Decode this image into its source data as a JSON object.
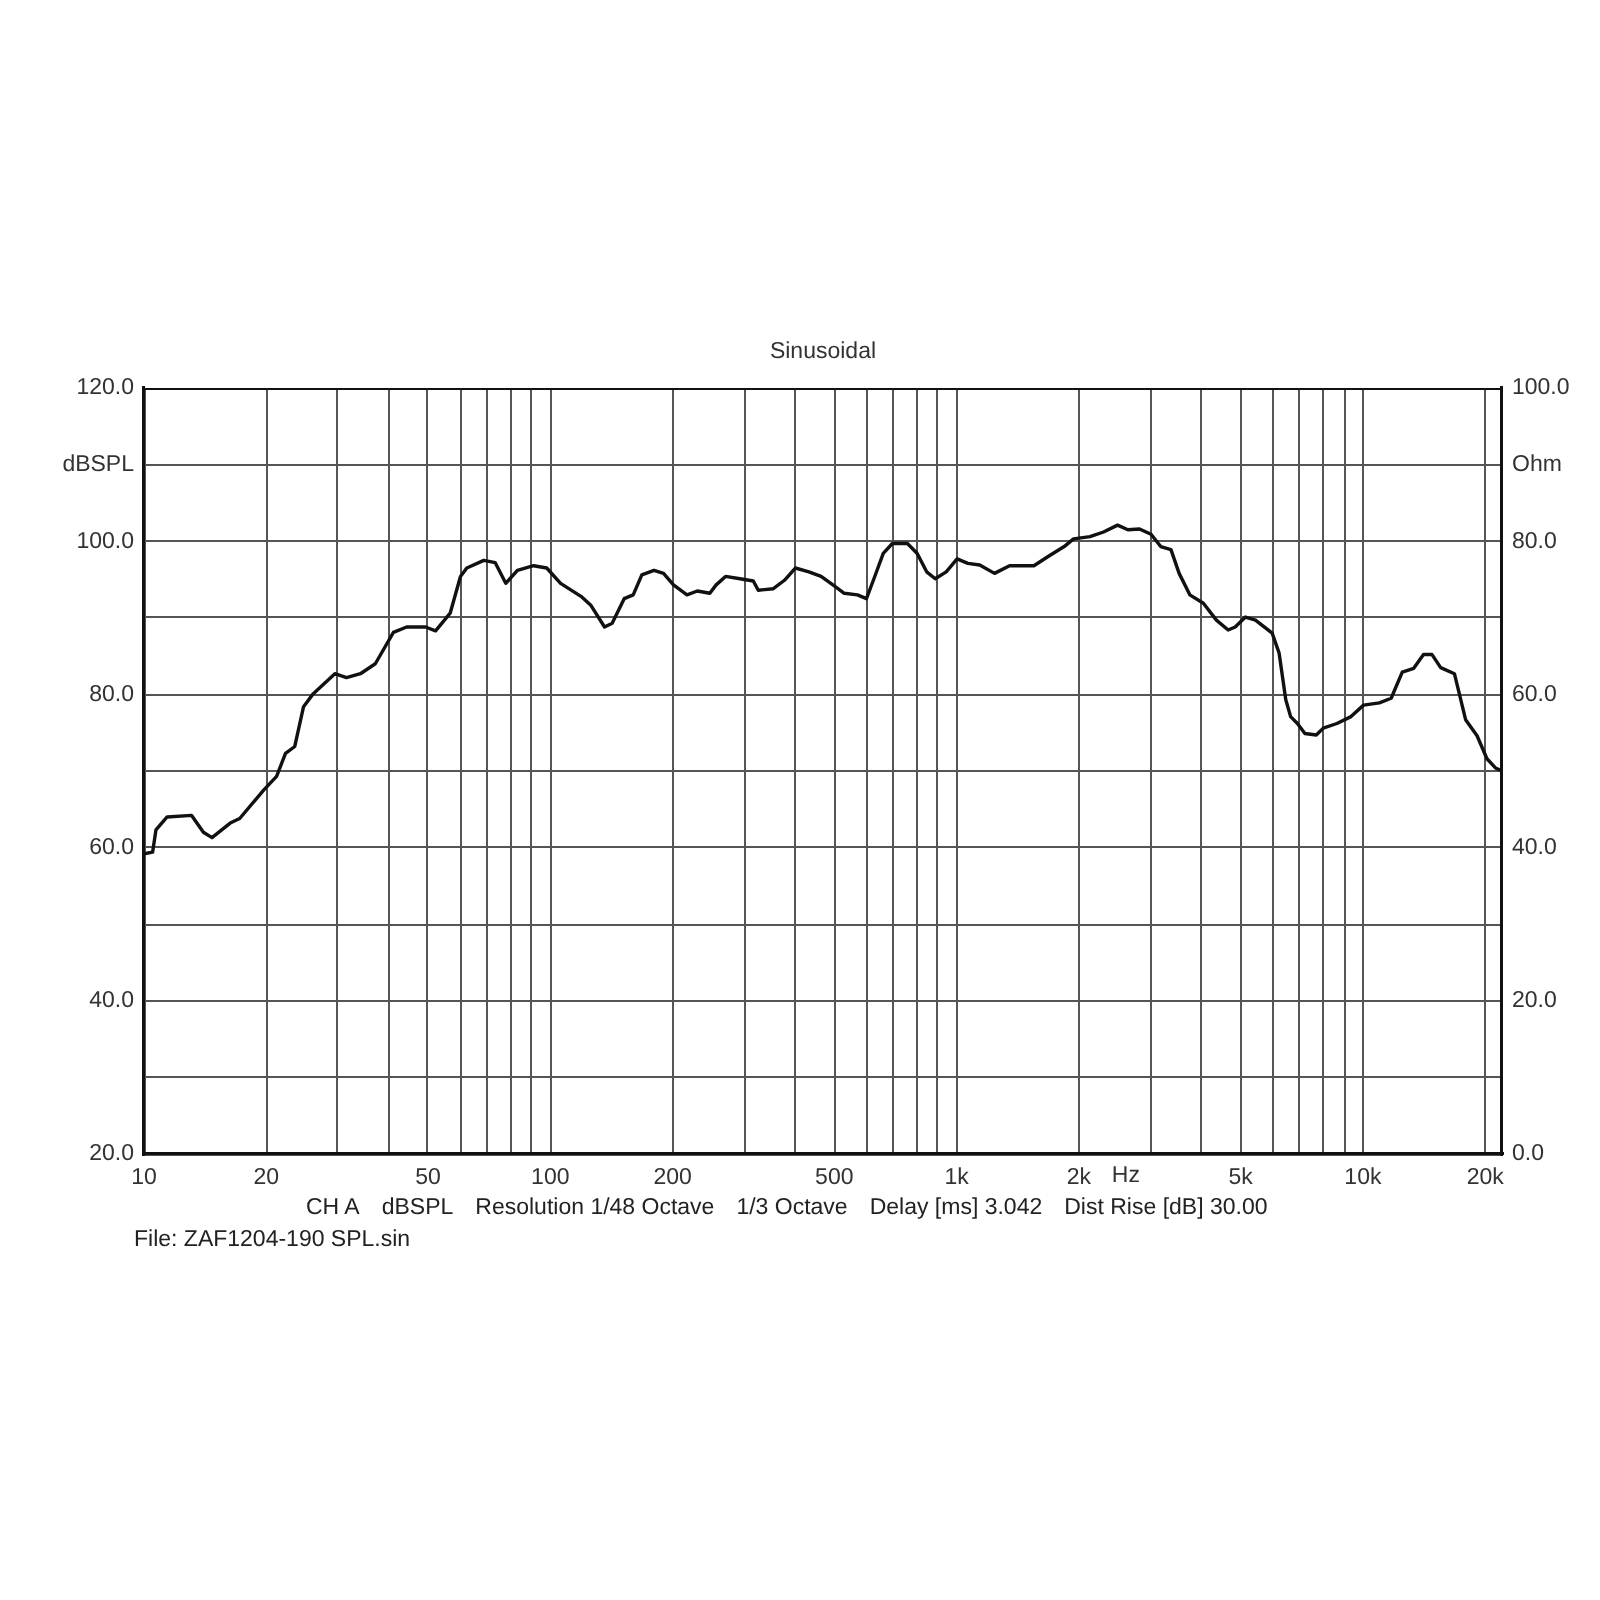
{
  "chart_data": {
    "type": "line",
    "title": "Sinusoidal",
    "xlabel": "Hz",
    "ylabel": "dBSPL",
    "y2label": "Ohm",
    "annotations": [
      "CH A",
      "dBSPL",
      "Resolution 1/48 Octave",
      "1/3 Octave",
      "Delay [ms] 3.042",
      "Dist Rise [dB] 30.00",
      "File: ZAF1204-190 SPL.sin"
    ],
    "x": [
      10,
      10.5,
      10.7,
      11.4,
      13.1,
      14,
      14.7,
      16.3,
      17.2,
      19.7,
      21.2,
      22.3,
      23.5,
      24.7,
      26.1,
      29.5,
      31.5,
      34.1,
      37.1,
      41.1,
      44.3,
      49.3,
      52.2,
      56.7,
      60.1,
      62.3,
      68.6,
      73.2,
      77.7,
      83,
      91,
      98,
      106,
      119,
      126,
      136,
      142,
      152,
      160,
      168,
      180,
      190,
      201,
      217,
      230,
      247,
      256,
      270,
      293,
      316,
      325,
      354,
      377,
      401,
      433,
      464,
      502,
      529,
      570,
      600,
      624,
      660,
      695,
      757,
      800,
      844,
      886,
      943,
      1003,
      1066,
      1140,
      1240,
      1350,
      1550,
      1680,
      1840,
      1940,
      2130,
      2300,
      2490,
      2640,
      2820,
      3010,
      3180,
      3370,
      3530,
      3750,
      4050,
      4360,
      4660,
      4850,
      5140,
      5440,
      5980,
      6220,
      6460,
      6640,
      6900,
      7200,
      7680,
      7990,
      8630,
      9350,
      10040,
      10980,
      11740,
      12500,
      13340,
      14100,
      14800,
      15540,
      16800,
      17900,
      19100,
      20200,
      21200,
      22000
    ],
    "series": [
      {
        "color": "#111111",
        "values": [
          59.2,
          59.4,
          62.3,
          64.0,
          64.2,
          62.0,
          61.3,
          63.2,
          63.8,
          67.5,
          69.3,
          72.3,
          73.2,
          78.4,
          80.1,
          82.7,
          82.2,
          82.7,
          84.0,
          88.1,
          88.8,
          88.8,
          88.3,
          90.6,
          95.4,
          96.5,
          97.5,
          97.2,
          94.5,
          96.2,
          96.8,
          96.5,
          94.5,
          92.8,
          91.6,
          88.8,
          89.3,
          92.5,
          93.0,
          95.6,
          96.2,
          95.8,
          94.3,
          93.0,
          93.5,
          93.2,
          94.3,
          95.4,
          95.1,
          94.8,
          93.6,
          93.8,
          94.9,
          96.5,
          96.0,
          95.4,
          94.1,
          93.2,
          93.0,
          92.5,
          94.9,
          98.4,
          99.7,
          99.7,
          98.4,
          96.0,
          95.1,
          96.0,
          97.7,
          97.1,
          96.9,
          95.8,
          96.8,
          96.8,
          98.0,
          99.3,
          100.3,
          100.6,
          101.2,
          102.1,
          101.5,
          101.6,
          100.9,
          99.3,
          98.9,
          95.8,
          93.0,
          91.9,
          89.7,
          88.4,
          88.8,
          90.1,
          89.7,
          88.0,
          85.4,
          79.3,
          77.1,
          76.2,
          74.9,
          74.7,
          75.6,
          76.2,
          77.1,
          78.6,
          78.9,
          79.5,
          82.9,
          83.4,
          85.2,
          85.2,
          83.5,
          82.7,
          76.7,
          74.6,
          71.6,
          70.4,
          70.0
        ]
      }
    ],
    "xlim": [
      10,
      22000
    ],
    "xticks": [
      10,
      20,
      {
        "value": 30,
        "label": null
      },
      {
        "value": 40,
        "label": null
      },
      50,
      {
        "value": 60,
        "label": null
      },
      {
        "value": 70,
        "label": null
      },
      {
        "value": 80,
        "label": null
      },
      {
        "value": 90,
        "label": null
      },
      100,
      200,
      {
        "value": 300,
        "label": null
      },
      {
        "value": 400,
        "label": null
      },
      500,
      {
        "value": 600,
        "label": null
      },
      {
        "value": 700,
        "label": null
      },
      {
        "value": 800,
        "label": null
      },
      {
        "value": 900,
        "label": null
      },
      {
        "value": 1000,
        "label": "1k"
      },
      {
        "value": 2000,
        "label": "2k"
      },
      {
        "value": 3000,
        "label": null
      },
      {
        "value": 4000,
        "label": null
      },
      {
        "value": 5000,
        "label": "5k"
      },
      {
        "value": 6000,
        "label": null
      },
      {
        "value": 7000,
        "label": null
      },
      {
        "value": 8000,
        "label": null
      },
      {
        "value": 9000,
        "label": null
      },
      {
        "value": 10000,
        "label": "10k"
      },
      {
        "value": 20000,
        "label": "20k"
      }
    ],
    "ylim": [
      20,
      120
    ],
    "yticks": [
      {
        "value": 20,
        "label": "20.0"
      },
      {
        "value": 30,
        "label": null
      },
      {
        "value": 40,
        "label": "40.0"
      },
      {
        "value": 50,
        "label": null
      },
      {
        "value": 60,
        "label": "60.0"
      },
      {
        "value": 70,
        "label": null
      },
      {
        "value": 80,
        "label": "80.0"
      },
      {
        "value": 90,
        "label": null
      },
      {
        "value": 100,
        "label": "100.0"
      },
      {
        "value": 110,
        "label": null
      },
      {
        "value": 120,
        "label": "120.0"
      }
    ],
    "y2lim": [
      0,
      100
    ],
    "y2ticks": [
      {
        "value": 0,
        "label": "0.0"
      },
      {
        "value": 10,
        "label": null
      },
      {
        "value": 20,
        "label": "20.0"
      },
      {
        "value": 30,
        "label": null
      },
      {
        "value": 40,
        "label": "40.0"
      },
      {
        "value": 50,
        "label": null
      },
      {
        "value": 60,
        "label": "60.0"
      },
      {
        "value": 70,
        "label": null
      },
      {
        "value": 80,
        "label": "80.0"
      },
      {
        "value": 90,
        "label": null
      },
      {
        "value": 100,
        "label": "100.0"
      }
    ],
    "log": "x",
    "grid": true
  }
}
